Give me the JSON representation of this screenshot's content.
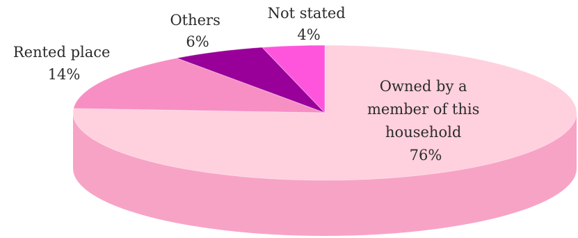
{
  "chart_data": {
    "type": "pie",
    "style": "3d",
    "slices": [
      {
        "label": "Owned by a member of this household",
        "value": 76,
        "value_label": "76%",
        "color": "#ffd0dd",
        "side_color": "#f7a3c6"
      },
      {
        "label": "Rented place",
        "value": 14,
        "value_label": "14%",
        "color": "#f78fc4",
        "side_color": "#e46fa8"
      },
      {
        "label": "Others",
        "value": 6,
        "value_label": "6%",
        "color": "#990099",
        "side_color": "#6e006e"
      },
      {
        "label": "Not stated",
        "value": 4,
        "value_label": "4%",
        "color": "#ff55dd",
        "side_color": "#d832b8"
      }
    ],
    "label_lines": {
      "owned": [
        "Owned by a",
        "member of this",
        "household"
      ],
      "rented": [
        "Rented place"
      ],
      "others": [
        "Others"
      ],
      "not_stated": [
        "Not stated"
      ]
    }
  }
}
